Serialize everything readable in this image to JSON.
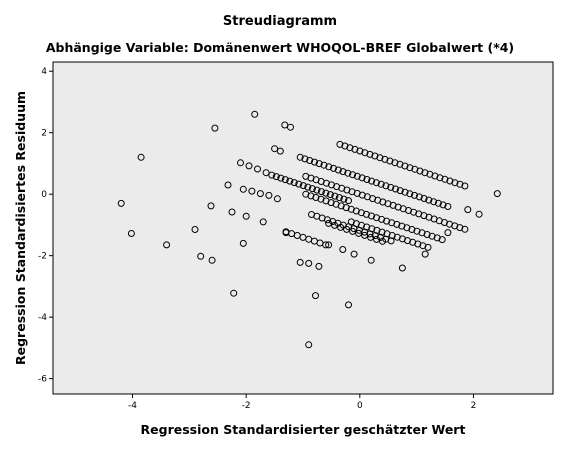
{
  "chart_data": {
    "type": "scatter",
    "title": "Streudiagramm",
    "subtitle": "Abhängige Variable: Domänenwert WHOQOL-BREF Globalwert (*4)",
    "xlabel": "Regression Standardisierter geschätzter Wert",
    "ylabel": "Regression Standardisiertes Residuum",
    "xlim": [
      -5.4,
      3.4
    ],
    "ylim": [
      -6.5,
      4.3
    ],
    "xticks": [
      -4,
      -2,
      0,
      2
    ],
    "yticks": [
      -6,
      -4,
      -2,
      0,
      2,
      4
    ],
    "grid": false,
    "background_color": "#ebebeb",
    "marker": "open-circle",
    "points": [
      {
        "x": -4.2,
        "y": -0.3
      },
      {
        "x": -4.02,
        "y": -1.28
      },
      {
        "x": -3.85,
        "y": 1.2
      },
      {
        "x": -3.4,
        "y": -1.65
      },
      {
        "x": -2.9,
        "y": -1.15
      },
      {
        "x": -2.8,
        "y": -2.02
      },
      {
        "x": -2.62,
        "y": -0.38
      },
      {
        "x": -2.6,
        "y": -2.15
      },
      {
        "x": -2.55,
        "y": 2.15
      },
      {
        "x": -2.32,
        "y": 0.3
      },
      {
        "x": -2.25,
        "y": -0.58
      },
      {
        "x": -2.22,
        "y": -3.22
      },
      {
        "x": -2.1,
        "y": 1.02
      },
      {
        "x": -2.05,
        "y": -1.6
      },
      {
        "x": -2.05,
        "y": 0.16
      },
      {
        "x": -2.0,
        "y": -0.72
      },
      {
        "x": -1.95,
        "y": 0.92
      },
      {
        "x": -1.9,
        "y": 0.1
      },
      {
        "x": -1.85,
        "y": 2.6
      },
      {
        "x": -1.8,
        "y": 0.82
      },
      {
        "x": -1.75,
        "y": 0.02
      },
      {
        "x": -1.7,
        "y": -0.9
      },
      {
        "x": -1.65,
        "y": 0.7
      },
      {
        "x": -1.6,
        "y": -0.04
      },
      {
        "x": -1.5,
        "y": 1.48
      },
      {
        "x": -1.45,
        "y": -0.15
      },
      {
        "x": -1.4,
        "y": 1.4
      },
      {
        "x": -1.32,
        "y": 2.25
      },
      {
        "x": -1.3,
        "y": -1.25
      },
      {
        "x": -1.22,
        "y": 2.18
      },
      {
        "x": -1.05,
        "y": -2.22
      },
      {
        "x": -0.9,
        "y": -2.25
      },
      {
        "x": -0.9,
        "y": -4.9
      },
      {
        "x": -0.78,
        "y": -3.3
      },
      {
        "x": -0.72,
        "y": -2.35
      },
      {
        "x": -0.55,
        "y": -1.65
      },
      {
        "x": -0.3,
        "y": -1.8
      },
      {
        "x": -0.2,
        "y": -3.6
      },
      {
        "x": -0.1,
        "y": -1.95
      },
      {
        "x": 0.2,
        "y": -2.15
      },
      {
        "x": 0.75,
        "y": -2.4
      },
      {
        "x": 1.15,
        "y": -1.95
      },
      {
        "x": 1.55,
        "y": -1.25
      },
      {
        "x": 1.9,
        "y": -0.5
      },
      {
        "x": 2.1,
        "y": -0.65
      },
      {
        "x": 2.42,
        "y": 0.02
      }
    ],
    "point_bands": [
      {
        "x_from": -1.55,
        "x_to": -0.2,
        "y_at_start": 0.62,
        "slope": -0.615,
        "count": 18
      },
      {
        "x_from": -1.05,
        "x_to": 1.55,
        "y_at_start": 1.2,
        "slope": -0.615,
        "count": 32
      },
      {
        "x_from": -0.35,
        "x_to": 1.85,
        "y_at_start": 1.62,
        "slope": -0.615,
        "count": 26
      },
      {
        "x_from": -0.95,
        "x_to": 1.85,
        "y_at_start": 0.58,
        "slope": -0.615,
        "count": 32
      },
      {
        "x_from": -0.95,
        "x_to": 1.45,
        "y_at_start": -0.0,
        "slope": -0.615,
        "count": 28
      },
      {
        "x_from": -0.85,
        "x_to": 0.55,
        "y_at_start": -0.66,
        "slope": -0.615,
        "count": 16
      },
      {
        "x_from": -0.15,
        "x_to": 1.2,
        "y_at_start": -0.9,
        "slope": -0.615,
        "count": 16
      },
      {
        "x_from": -1.3,
        "x_to": -0.6,
        "y_at_start": -1.22,
        "slope": -0.615,
        "count": 8
      },
      {
        "x_from": -0.55,
        "x_to": 0.4,
        "y_at_start": -0.95,
        "slope": -0.615,
        "count": 10
      }
    ]
  }
}
